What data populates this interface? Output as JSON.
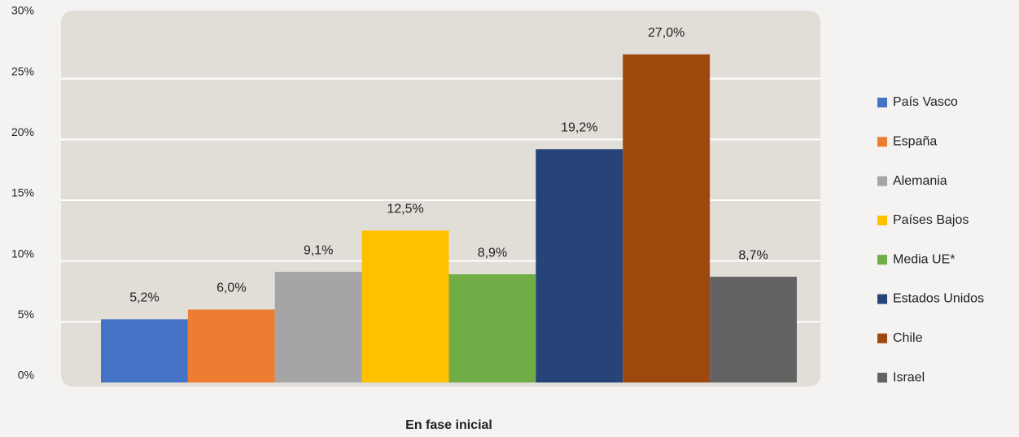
{
  "chart_data": {
    "type": "bar",
    "categories": [
      "En fase inicial"
    ],
    "series": [
      {
        "name": "País Vasco",
        "color": "#4472c4",
        "values": [
          5.2
        ],
        "value_labels": [
          "5,2%"
        ]
      },
      {
        "name": "España",
        "color": "#ed7d31",
        "values": [
          6.0
        ],
        "value_labels": [
          "6,0%"
        ]
      },
      {
        "name": "Alemania",
        "color": "#a5a5a5",
        "values": [
          9.1
        ],
        "value_labels": [
          "9,1%"
        ]
      },
      {
        "name": "Países Bajos",
        "color": "#ffc000",
        "values": [
          12.5
        ],
        "value_labels": [
          "12,5%"
        ]
      },
      {
        "name": "Media UE*",
        "color": "#70ad47",
        "values": [
          8.9
        ],
        "value_labels": [
          "8,9%"
        ]
      },
      {
        "name": "Estados Unidos",
        "color": "#264478",
        "values": [
          19.2
        ],
        "value_labels": [
          "19,2%"
        ]
      },
      {
        "name": "Chile",
        "color": "#9e480e",
        "values": [
          27.0
        ],
        "value_labels": [
          "27,0%"
        ]
      },
      {
        "name": "Israel",
        "color": "#636363",
        "values": [
          8.7
        ],
        "value_labels": [
          "8,7%"
        ]
      }
    ],
    "ylim": [
      0,
      30
    ],
    "yticks": [
      {
        "value": 0,
        "label": "0%"
      },
      {
        "value": 5,
        "label": "5%"
      },
      {
        "value": 10,
        "label": "10%"
      },
      {
        "value": 15,
        "label": "15%"
      },
      {
        "value": 20,
        "label": "20%"
      },
      {
        "value": 25,
        "label": "25%"
      },
      {
        "value": 30,
        "label": "30%"
      }
    ],
    "grid": true,
    "legend": "right"
  }
}
